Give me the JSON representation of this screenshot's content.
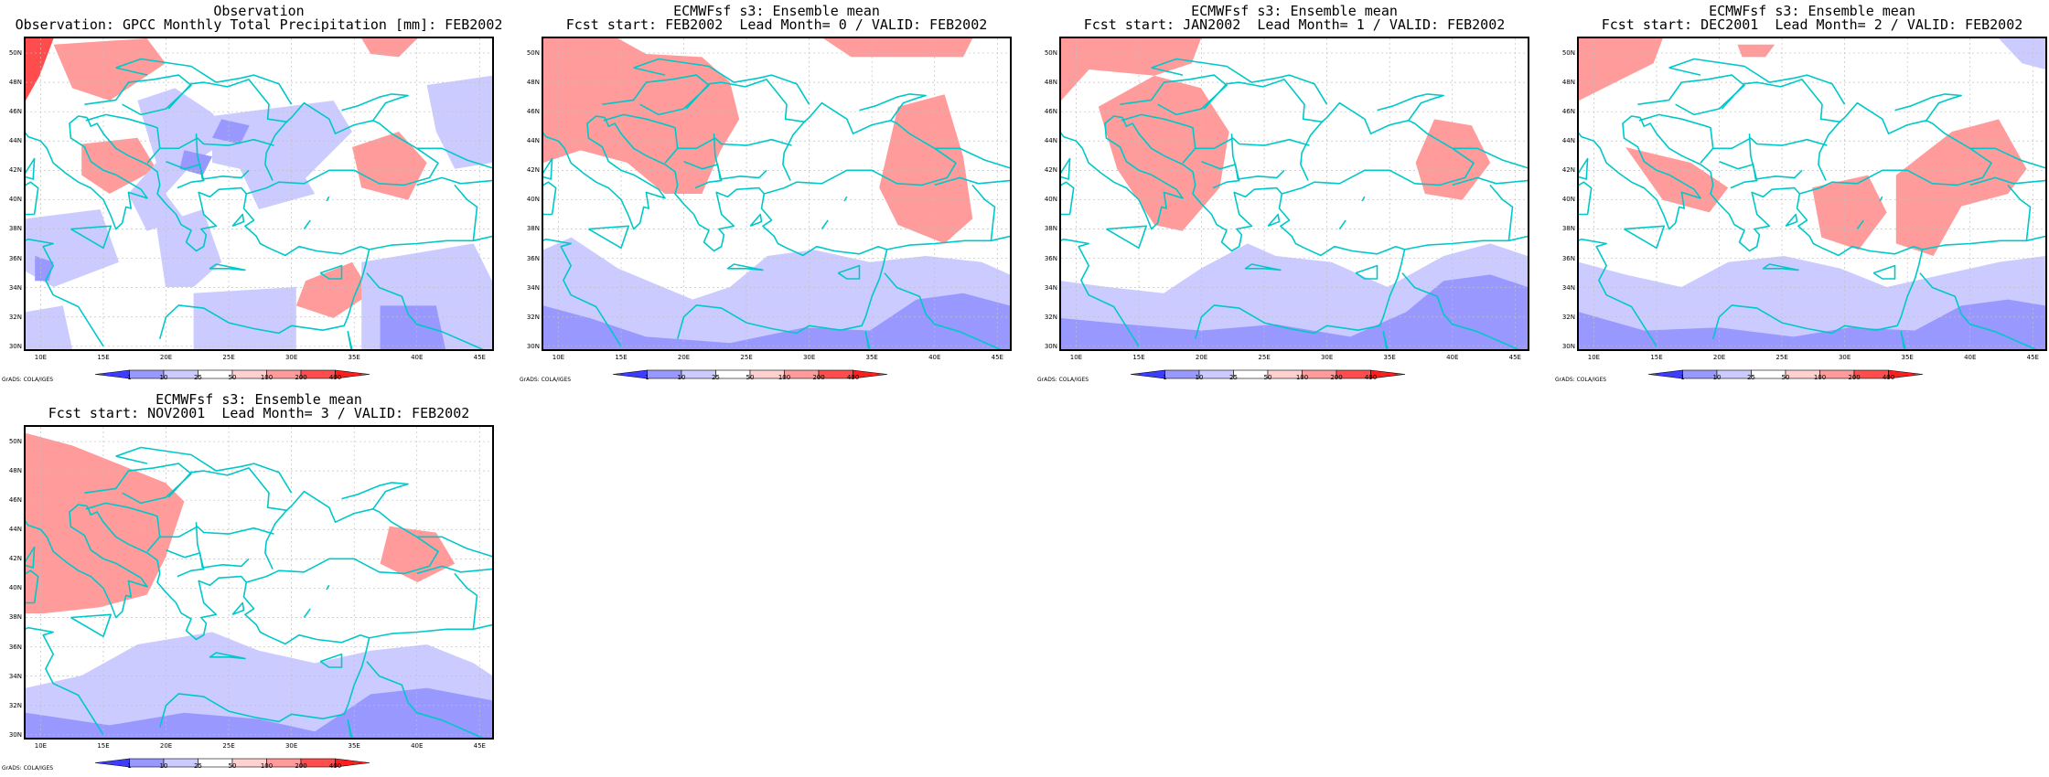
{
  "legend": {
    "labels": [
      "1",
      "10",
      "25",
      "50",
      "100",
      "200",
      "400"
    ],
    "colors": [
      "#3d3dff",
      "#9898ff",
      "#cbcbff",
      "#ffffff",
      "#ffd0d0",
      "#ff9b9b",
      "#ff4d4d",
      "#ff1e1e"
    ]
  },
  "axes": {
    "lat_labels": [
      "50N",
      "48N",
      "46N",
      "44N",
      "42N",
      "40N",
      "38N",
      "36N",
      "34N",
      "32N",
      "30N"
    ],
    "lon_labels": [
      "10E",
      "15E",
      "20E",
      "25E",
      "30E",
      "35E",
      "40E",
      "45E"
    ]
  },
  "credit": "GrADS: COLA/IGES",
  "colors": {
    "coastline": "#00c8c8",
    "grid": "#c0c0c0",
    "frame": "#000000"
  },
  "panels": [
    {
      "title_line1": "Observation",
      "title_line2": "Observation: GPCC Monthly Total Precipitation [mm]: FEB2002"
    },
    {
      "title_line1": "ECMWFsf s3: Ensemble mean",
      "title_line2": "Fcst start: FEB2002  Lead Month= 0 / VALID: FEB2002"
    },
    {
      "title_line1": "ECMWFsf s3: Ensemble mean",
      "title_line2": "Fcst start: JAN2002  Lead Month= 1 / VALID: FEB2002"
    },
    {
      "title_line1": "ECMWFsf s3: Ensemble mean",
      "title_line2": "Fcst start: DEC2001  Lead Month= 2 / VALID: FEB2002"
    },
    {
      "title_line1": "ECMWFsf s3: Ensemble mean",
      "title_line2": "Fcst start: NOV2001  Lead Month= 3 / VALID: FEB2002"
    }
  ]
}
